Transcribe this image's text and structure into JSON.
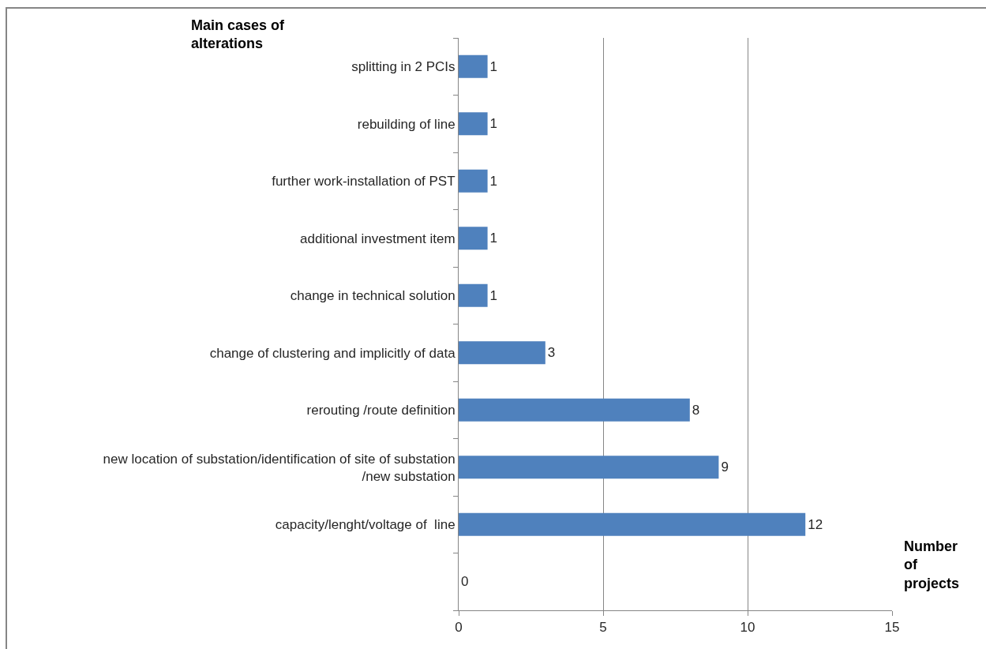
{
  "chart_data": {
    "type": "bar",
    "orientation": "horizontal",
    "categories": [
      "splitting in 2 PCIs",
      "rebuilding of line",
      "further work-installation of PST",
      "additional investment item",
      "change in technical solution",
      "change of clustering and implicitly of data",
      "rerouting /route definition",
      "new location of substation/identification of site of substation /new substation",
      "capacity/lenght/voltage of  line",
      null
    ],
    "values": [
      1,
      1,
      1,
      1,
      1,
      3,
      8,
      9,
      12,
      0
    ],
    "color": "#4f81bd",
    "xlabel": "Number of projects",
    "ylabel": "Main cases of alterations",
    "xlim": [
      0,
      15
    ],
    "xticks": [
      0,
      5,
      10,
      15
    ],
    "grid": "x",
    "data_labels": true
  }
}
